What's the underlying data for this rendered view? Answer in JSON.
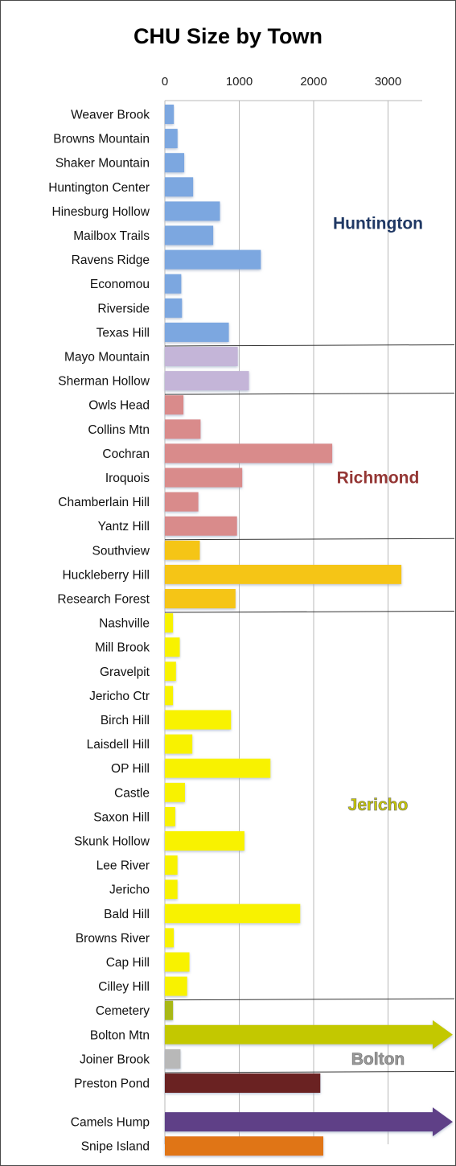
{
  "chart_data": {
    "type": "bar",
    "orientation": "horizontal",
    "title": "CHU Size by Town",
    "xlabel": "",
    "ylabel": "",
    "xlim": [
      0,
      3500
    ],
    "x_ticks": [
      0,
      1000,
      2000,
      3000
    ],
    "grid": true,
    "categories": [
      "Weaver Brook",
      "Browns Mountain",
      "Shaker Mountain",
      "Huntington Center",
      "Hinesburg Hollow",
      "Mailbox Trails",
      "Ravens Ridge",
      "Economou",
      "Riverside",
      "Texas Hill",
      "Mayo Mountain",
      "Sherman Hollow",
      "Owls Head",
      "Collins Mtn",
      "Cochran",
      "Iroquois",
      "Chamberlain Hill",
      "Yantz Hill",
      "Southview",
      "Huckleberry Hill",
      "Research Forest",
      "Nashville",
      "Mill Brook",
      "Gravelpit",
      "Jericho Ctr",
      "Birch Hill",
      "Laisdell Hill",
      "OP Hill",
      "Castle",
      "Saxon Hill",
      "Skunk Hollow",
      "Lee River",
      "Jericho",
      "Bald Hill",
      "Browns River",
      "Cap Hill",
      "Cilley Hill",
      "Cemetery",
      "Bolton Mtn",
      "Joiner Brook",
      "Preston Pond",
      "Camels Hump",
      "Snipe Island"
    ],
    "values": [
      120,
      170,
      260,
      380,
      740,
      650,
      1290,
      220,
      230,
      860,
      980,
      1130,
      250,
      480,
      2250,
      1040,
      450,
      970,
      470,
      3180,
      950,
      110,
      200,
      150,
      110,
      890,
      370,
      1420,
      270,
      140,
      1070,
      170,
      170,
      1820,
      120,
      330,
      300,
      110,
      3800,
      210,
      2090,
      3800,
      2130
    ],
    "exceeds_axis": [
      false,
      false,
      false,
      false,
      false,
      false,
      false,
      false,
      false,
      false,
      false,
      false,
      false,
      false,
      false,
      false,
      false,
      false,
      false,
      false,
      false,
      false,
      false,
      false,
      false,
      false,
      false,
      false,
      false,
      false,
      false,
      false,
      false,
      false,
      false,
      false,
      false,
      false,
      true,
      false,
      false,
      true,
      false
    ],
    "colors": [
      "#7ba7e0",
      "#7ba7e0",
      "#7ba7e0",
      "#7ba7e0",
      "#7ba7e0",
      "#7ba7e0",
      "#7ba7e0",
      "#7ba7e0",
      "#7ba7e0",
      "#7ba7e0",
      "#c4b5d8",
      "#c4b5d8",
      "#d98b8b",
      "#d98b8b",
      "#d98b8b",
      "#d98b8b",
      "#d98b8b",
      "#d98b8b",
      "#f5c518",
      "#f5c518",
      "#f5c518",
      "#f8f200",
      "#f8f200",
      "#f8f200",
      "#f8f200",
      "#f8f200",
      "#f8f200",
      "#f8f200",
      "#f8f200",
      "#f8f200",
      "#f8f200",
      "#f8f200",
      "#f8f200",
      "#f8f200",
      "#f8f200",
      "#f8f200",
      "#f8f200",
      "#a8b818",
      "#c3c800",
      "#b8b8b8",
      "#6a2020",
      "#5e3f87",
      "#e07418"
    ],
    "group_separators_after": [
      9,
      11,
      17,
      20,
      36,
      39
    ],
    "gap_before_index": 41,
    "town_labels": [
      {
        "text": "Huntington",
        "color": "#1f3864",
        "row": 4.5
      },
      {
        "text": "Richmond",
        "color": "#943634",
        "row": 15
      },
      {
        "text": "Jericho",
        "color": "#c8c800",
        "row": 28.5,
        "outlined": true
      },
      {
        "text": "Bolton",
        "color": "#9a9a9a",
        "row": 39,
        "outlined": true
      }
    ]
  }
}
